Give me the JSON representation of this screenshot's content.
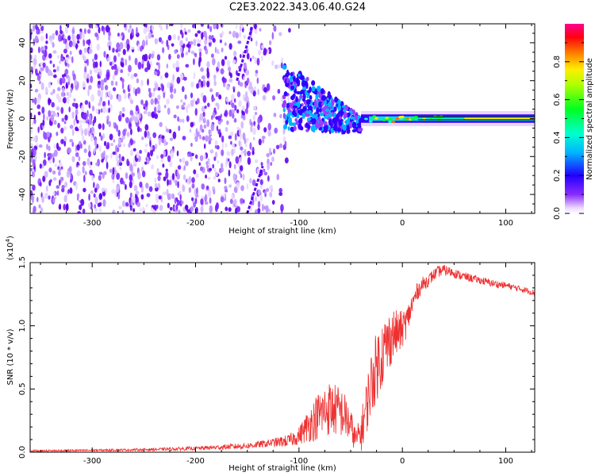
{
  "title": "C2E3.2022.343.06.40.G24",
  "chart_data": [
    {
      "type": "heatmap",
      "xlabel": "Height of straight line (km)",
      "ylabel": "Frequency (Hz)",
      "xlim": [
        -360,
        128
      ],
      "ylim": [
        -50,
        50
      ],
      "x_ticks": [
        -300,
        -200,
        -100,
        0,
        100
      ],
      "x_tick_labels": [
        "-300",
        "-200",
        "-100",
        "0",
        "100"
      ],
      "y_ticks": [
        -40,
        -20,
        0,
        20,
        40
      ],
      "y_tick_labels": [
        "-40",
        "-20",
        "0",
        "20",
        "40"
      ],
      "colorbar": {
        "label": "Normalized spectral amplitude",
        "range": [
          0,
          1
        ],
        "ticks": [
          0.0,
          0.2,
          0.4,
          0.6,
          0.8
        ],
        "tick_labels": [
          "0.0",
          "0.2",
          "0.4",
          "0.6",
          "0.8"
        ],
        "colormap": [
          "#ffffff",
          "#4400ff",
          "#00ffff",
          "#00ff00",
          "#ffff00",
          "#ff0000",
          "#ff0080"
        ]
      },
      "features": [
        {
          "name": "noise region",
          "x_range": [
            -360,
            -115
          ],
          "y_range": [
            -50,
            50
          ],
          "amplitude": 0.05
        },
        {
          "name": "converging signal",
          "x_range": [
            -115,
            -40
          ],
          "y_center": [
            12,
            -3
          ],
          "amplitude": 0.2
        },
        {
          "name": "signal band",
          "x_range": [
            -40,
            128
          ],
          "y_center": 0,
          "amplitude": 0.75
        },
        {
          "name": "streak",
          "x": [
            -160,
            -145
          ],
          "y": [
            20,
            49
          ]
        },
        {
          "name": "streak",
          "x": [
            -150,
            -135
          ],
          "y": [
            -50,
            -25
          ]
        }
      ]
    },
    {
      "type": "line",
      "xlabel": "Height of straight line (km)",
      "ylabel": "SNR (10 * v/v)",
      "y_multiplier": "(x10",
      "y_multiplier_exp": "4",
      "y_multiplier_close": ")",
      "xlim": [
        -360,
        128
      ],
      "ylim": [
        0,
        15000
      ],
      "x_ticks": [
        -300,
        -200,
        -100,
        0,
        100
      ],
      "x_tick_labels": [
        "-300",
        "-200",
        "-100",
        "0",
        "100"
      ],
      "y_ticks": [
        0,
        5000,
        10000,
        15000
      ],
      "y_tick_labels": [
        "0.0",
        "0.5",
        "1.0",
        "1.5"
      ],
      "series": [
        {
          "color": "#ee3030",
          "x": [
            -360,
            -300,
            -250,
            -200,
            -150,
            -130,
            -110,
            -100,
            -90,
            -80,
            -70,
            -60,
            -55,
            -50,
            -45,
            -40,
            -35,
            -30,
            -25,
            -20,
            -15,
            -10,
            -5,
            0,
            5,
            10,
            15,
            20,
            25,
            30,
            35,
            40,
            45,
            50,
            55,
            60,
            70,
            80,
            90,
            100,
            110,
            120,
            128
          ],
          "y": [
            100,
            150,
            200,
            300,
            500,
            700,
            900,
            1300,
            2200,
            3000,
            3500,
            3200,
            2800,
            2000,
            1000,
            1500,
            3500,
            5500,
            6800,
            7800,
            8400,
            9300,
            9400,
            9700,
            10500,
            11800,
            12800,
            13300,
            13600,
            14000,
            14300,
            14400,
            14300,
            14200,
            14000,
            13900,
            13700,
            13500,
            13300,
            13200,
            13000,
            12800,
            12600
          ],
          "noise_amplitude": [
            80,
            80,
            100,
            150,
            250,
            300,
            500,
            700,
            1400,
            2000,
            2200,
            2000,
            1800,
            1500,
            800,
            1500,
            2200,
            2600,
            2800,
            2800,
            2600,
            2200,
            1800,
            1500,
            1200,
            900,
            700,
            600,
            500,
            500,
            450,
            450,
            400,
            400,
            350,
            350,
            300,
            300,
            300,
            250,
            250,
            250,
            250
          ]
        }
      ]
    }
  ]
}
